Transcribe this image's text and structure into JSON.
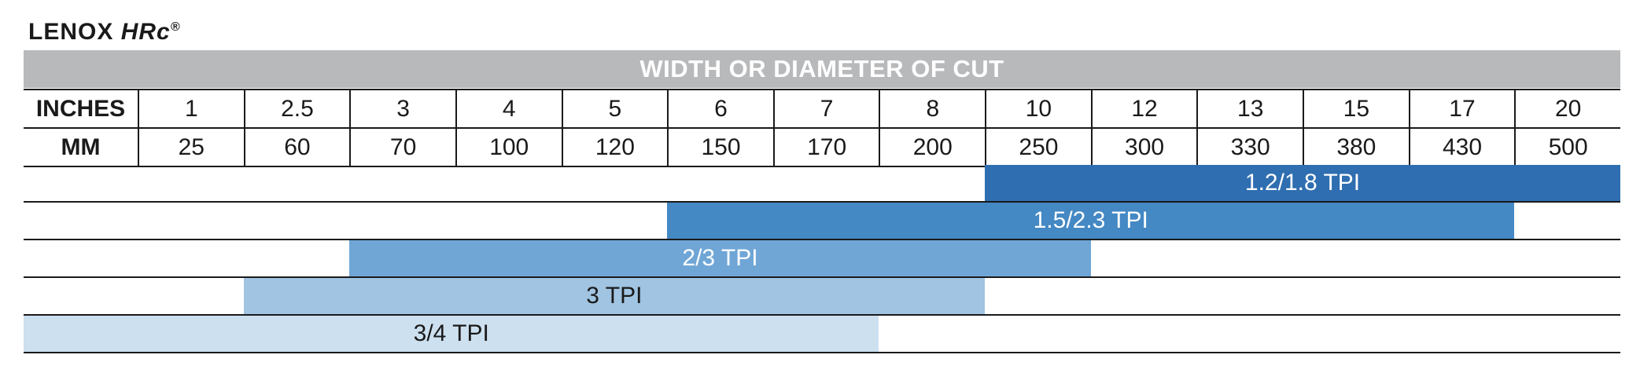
{
  "brand": {
    "name": "LENOX",
    "model": "HRc",
    "mark": "®"
  },
  "chart_data": {
    "type": "table",
    "title": "WIDTH OR DIAMETER OF CUT",
    "row_headers": [
      "INCHES",
      "MM"
    ],
    "inches": [
      "1",
      "2.5",
      "3",
      "4",
      "5",
      "6",
      "7",
      "8",
      "10",
      "12",
      "13",
      "15",
      "17",
      "20"
    ],
    "mm": [
      "25",
      "60",
      "70",
      "100",
      "120",
      "150",
      "170",
      "200",
      "250",
      "300",
      "330",
      "380",
      "430",
      "500"
    ],
    "ranges": [
      {
        "label": "1.2/1.8 TPI",
        "from_inches": "10",
        "to_inches": "20",
        "color": "#2f6eb0",
        "text_color": "#ffffff"
      },
      {
        "label": "1.5/2.3 TPI",
        "from_inches": "6",
        "to_inches": "17",
        "color": "#4488c4",
        "text_color": "#ffffff"
      },
      {
        "label": "2/3 TPI",
        "from_inches": "3",
        "to_inches": "10",
        "color": "#6fa6d6",
        "text_color": "#ffffff"
      },
      {
        "label": "3 TPI",
        "from_inches": "2.5",
        "to_inches": "8",
        "color": "#a0c4e2",
        "text_color": "#1a1a1a"
      },
      {
        "label": "3/4 TPI",
        "from_inches": "",
        "to_inches": "7",
        "color": "#cde0f0",
        "text_color": "#1a1a1a"
      }
    ]
  }
}
